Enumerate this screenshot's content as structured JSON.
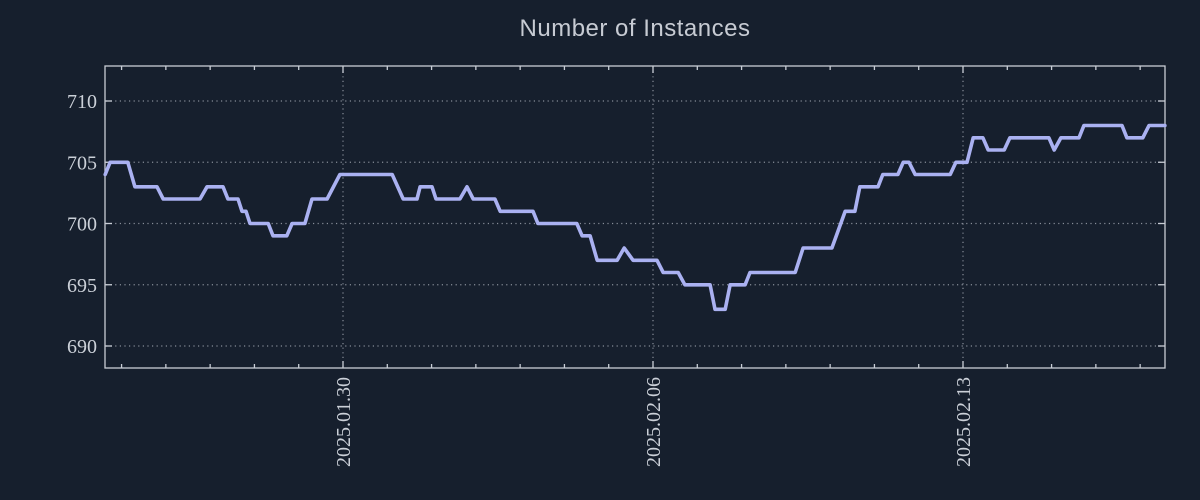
{
  "title": "Number of Instances",
  "colors": {
    "background": "#161f2d",
    "axis_frame": "#c8cdd5",
    "tick_label": "#cbd0d8",
    "grid_dots": "#9ba1ab",
    "title_text": "#c7cbd3",
    "line": "#aab1f1"
  },
  "chart_data": {
    "type": "line",
    "title": "Number of Instances",
    "xlabel": "",
    "ylabel": "",
    "legend": "none",
    "grid": "dotted, both axes, at major ticks",
    "y_ticks": [
      690,
      695,
      700,
      705,
      710
    ],
    "ylim": [
      688.4,
      712.9
    ],
    "x_ticks": [
      {
        "label": "2025.01.30",
        "day_offset": 0
      },
      {
        "label": "2025.02.06",
        "day_offset": 7
      },
      {
        "label": "2025.02.13",
        "day_offset": 14
      }
    ],
    "x_minor_tick_interval_days": 1,
    "x_range_day_offsets": [
      -5.37,
      18.56
    ],
    "series": [
      {
        "name": "instances",
        "color": "#aab1f1",
        "points_day_value": [
          [
            -5.37,
            704
          ],
          [
            -5.26,
            705
          ],
          [
            -4.86,
            705
          ],
          [
            -4.7,
            703
          ],
          [
            -4.2,
            703
          ],
          [
            -4.06,
            702
          ],
          [
            -3.23,
            702
          ],
          [
            -3.07,
            703
          ],
          [
            -2.71,
            703
          ],
          [
            -2.6,
            702
          ],
          [
            -2.37,
            702
          ],
          [
            -2.28,
            701
          ],
          [
            -2.19,
            701
          ],
          [
            -2.1,
            700
          ],
          [
            -1.69,
            700
          ],
          [
            -1.58,
            699
          ],
          [
            -1.27,
            699
          ],
          [
            -1.15,
            700
          ],
          [
            -0.86,
            700
          ],
          [
            -0.7,
            702
          ],
          [
            -0.36,
            702
          ],
          [
            -0.07,
            704
          ],
          [
            1.11,
            704
          ],
          [
            1.36,
            702
          ],
          [
            1.67,
            702
          ],
          [
            1.74,
            703
          ],
          [
            2.01,
            703
          ],
          [
            2.1,
            702
          ],
          [
            2.64,
            702
          ],
          [
            2.8,
            703
          ],
          [
            2.94,
            702
          ],
          [
            3.43,
            702
          ],
          [
            3.55,
            701
          ],
          [
            4.29,
            701
          ],
          [
            4.4,
            700
          ],
          [
            5.28,
            700
          ],
          [
            5.4,
            699
          ],
          [
            5.58,
            699
          ],
          [
            5.74,
            697
          ],
          [
            6.19,
            697
          ],
          [
            6.35,
            698
          ],
          [
            6.55,
            697
          ],
          [
            7.09,
            697
          ],
          [
            7.23,
            696
          ],
          [
            7.57,
            696
          ],
          [
            7.72,
            695
          ],
          [
            8.29,
            695
          ],
          [
            8.4,
            693
          ],
          [
            8.63,
            693
          ],
          [
            8.74,
            695
          ],
          [
            9.08,
            695
          ],
          [
            9.19,
            696
          ],
          [
            10.21,
            696
          ],
          [
            10.39,
            698
          ],
          [
            11.04,
            698
          ],
          [
            11.34,
            701
          ],
          [
            11.56,
            701
          ],
          [
            11.67,
            703
          ],
          [
            12.08,
            703
          ],
          [
            12.19,
            704
          ],
          [
            12.53,
            704
          ],
          [
            12.65,
            705
          ],
          [
            12.78,
            705
          ],
          [
            12.92,
            704
          ],
          [
            13.71,
            704
          ],
          [
            13.84,
            705
          ],
          [
            14.09,
            705
          ],
          [
            14.23,
            707
          ],
          [
            14.45,
            707
          ],
          [
            14.57,
            706
          ],
          [
            14.93,
            706
          ],
          [
            15.06,
            707
          ],
          [
            15.94,
            707
          ],
          [
            16.06,
            706
          ],
          [
            16.21,
            707
          ],
          [
            16.62,
            707
          ],
          [
            16.73,
            708
          ],
          [
            17.59,
            708
          ],
          [
            17.7,
            707
          ],
          [
            18.06,
            707
          ],
          [
            18.2,
            708
          ],
          [
            18.56,
            708
          ]
        ]
      }
    ]
  }
}
